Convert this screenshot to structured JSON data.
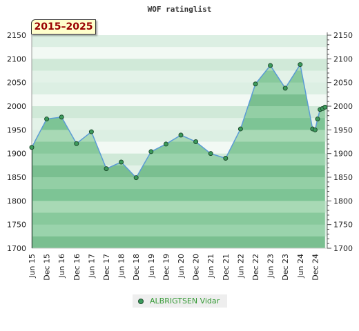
{
  "chart_data": {
    "type": "area",
    "title": "WOF ratinglist",
    "period_label": "2015–2025",
    "ylim": [
      1700,
      2150
    ],
    "yticks": [
      1700,
      1750,
      1800,
      1850,
      1900,
      1950,
      2000,
      2050,
      2100,
      2150
    ],
    "xticks": [
      "Jun 15",
      "Dec 15",
      "Jun 16",
      "Dec 16",
      "Jun 17",
      "Dec 17",
      "Jun 18",
      "Dec 18",
      "Jun 19",
      "Dec 19",
      "Jun 20",
      "Dec 20",
      "Jun 21",
      "Dec 21",
      "Jun 22",
      "Dec 22",
      "Jun 23",
      "Dec 23",
      "Jun 24",
      "Dec 24"
    ],
    "series": [
      {
        "name": "ALBRIGTSEN Vidar",
        "x": [
          "Jun 15",
          "Dec 15",
          "Jun 16",
          "Dec 16",
          "Jun 17",
          "Dec 17",
          "Jun 18",
          "Dec 18",
          "Jun 19",
          "Dec 19",
          "Jun 20",
          "Dec 20",
          "Jun 21",
          "Dec 21",
          "Jun 22",
          "Dec 22",
          "Jun 23",
          "Dec 23",
          "Jun 24",
          "Nov 24",
          "Dec 24",
          "Jan 25",
          "Feb 25",
          "Mar 25",
          "Apr 25"
        ],
        "values": [
          1913,
          1973,
          1977,
          1921,
          1946,
          1868,
          1882,
          1849,
          1904,
          1920,
          1939,
          1925,
          1900,
          1890,
          1952,
          2047,
          2086,
          2038,
          2088,
          1952,
          1950,
          1973,
          1993,
          1995,
          1998
        ]
      }
    ],
    "grid": true,
    "legend_position": "bottom",
    "colors": {
      "line": "#5b9bd5",
      "marker": "#3c9a5c",
      "marker_edge": "#1e4d2e",
      "legend_text": "#339933",
      "period_text": "#990000"
    }
  }
}
